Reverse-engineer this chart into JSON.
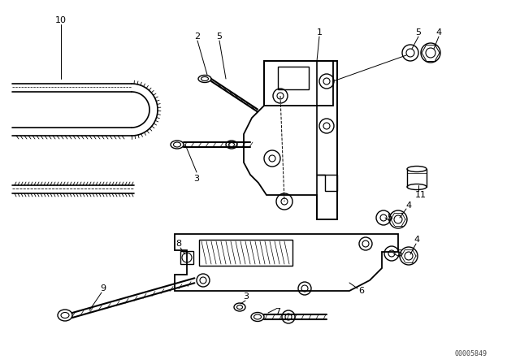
{
  "background_color": "#ffffff",
  "line_color": "#000000",
  "watermark": "00005849"
}
